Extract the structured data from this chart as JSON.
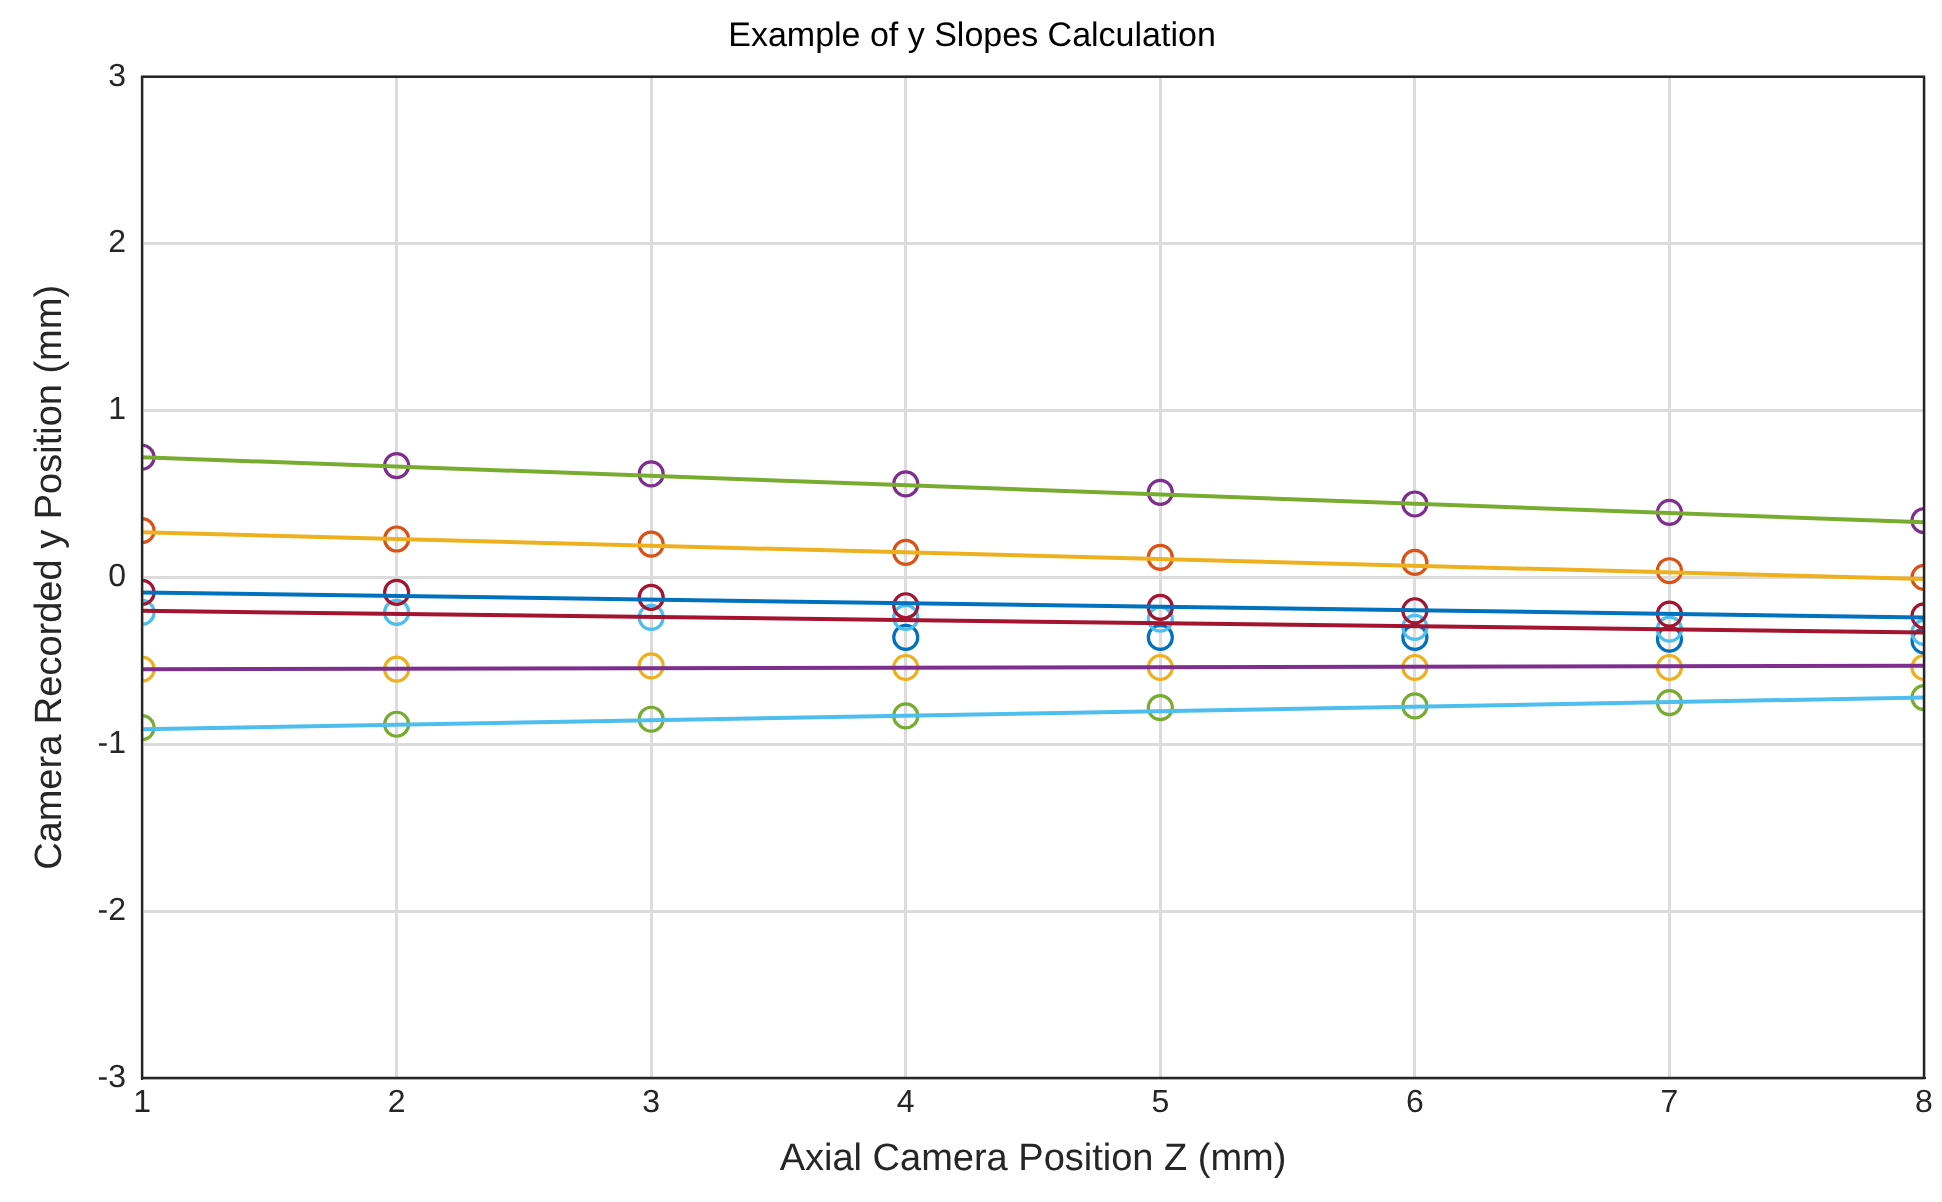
{
  "chart_data": {
    "type": "scatter",
    "title": "Example of y Slopes Calculation",
    "xlabel": "Axial Camera Position Z (mm)",
    "ylabel": "Camera Recorded y Position (mm)",
    "xlim": [
      1,
      8
    ],
    "xticks": [
      1,
      2,
      3,
      4,
      5,
      6,
      7,
      8
    ],
    "ylim": [
      -3,
      3
    ],
    "yticks": [
      -3,
      -2,
      -1,
      0,
      1,
      2,
      3
    ],
    "grid": true,
    "legend": false,
    "marker": "circle",
    "series": [
      {
        "type": "line",
        "marker": "none",
        "color": "#77ac30",
        "x": [
          1,
          8
        ],
        "values": [
          0.72,
          0.33
        ]
      },
      {
        "type": "line",
        "marker": "none",
        "color": "#edb120",
        "x": [
          1,
          8
        ],
        "values": [
          0.27,
          -0.01
        ]
      },
      {
        "type": "line",
        "marker": "none",
        "color": "#0072bd",
        "x": [
          1,
          8
        ],
        "values": [
          -0.09,
          -0.24
        ]
      },
      {
        "type": "line",
        "marker": "none",
        "color": "#a2142f",
        "x": [
          1,
          8
        ],
        "values": [
          -0.2,
          -0.33
        ]
      },
      {
        "type": "line",
        "marker": "none",
        "color": "#7e2f8e",
        "x": [
          1,
          8
        ],
        "values": [
          -0.55,
          -0.53
        ]
      },
      {
        "type": "line",
        "marker": "none",
        "color": "#4dbeee",
        "x": [
          1,
          8
        ],
        "values": [
          -0.91,
          -0.72
        ]
      },
      {
        "color": "#7e2f8e",
        "x": [
          1,
          2,
          3,
          4,
          5,
          6,
          7,
          8
        ],
        "values": [
          0.72,
          0.67,
          0.62,
          0.56,
          0.51,
          0.44,
          0.39,
          0.34
        ]
      },
      {
        "color": "#d95319",
        "x": [
          1,
          2,
          3,
          4,
          5,
          6,
          7,
          8
        ],
        "values": [
          0.28,
          0.23,
          0.2,
          0.15,
          0.12,
          0.09,
          0.04,
          0.0
        ]
      },
      {
        "color": "#a2142f",
        "x": [
          1,
          2,
          3,
          4,
          5,
          6,
          7,
          8
        ],
        "values": [
          -0.09,
          -0.09,
          -0.12,
          -0.17,
          -0.18,
          -0.2,
          -0.22,
          -0.23
        ]
      },
      {
        "color": "#4dbeee",
        "x": [
          1,
          2,
          3,
          4,
          5,
          6,
          7,
          8
        ],
        "values": [
          -0.21,
          -0.21,
          -0.24,
          -0.24,
          -0.25,
          -0.3,
          -0.31,
          -0.33
        ]
      },
      {
        "color": "#0072bd",
        "x": [
          4,
          5,
          6,
          7,
          8
        ],
        "values": [
          -0.36,
          -0.36,
          -0.36,
          -0.37,
          -0.38
        ]
      },
      {
        "color": "#edb120",
        "x": [
          1,
          2,
          3,
          4,
          5,
          6,
          7,
          8
        ],
        "values": [
          -0.55,
          -0.55,
          -0.53,
          -0.54,
          -0.54,
          -0.54,
          -0.54,
          -0.54
        ]
      },
      {
        "color": "#77ac30",
        "x": [
          1,
          2,
          3,
          4,
          5,
          6,
          7,
          8
        ],
        "values": [
          -0.9,
          -0.88,
          -0.85,
          -0.83,
          -0.78,
          -0.77,
          -0.75,
          -0.72
        ]
      }
    ]
  }
}
